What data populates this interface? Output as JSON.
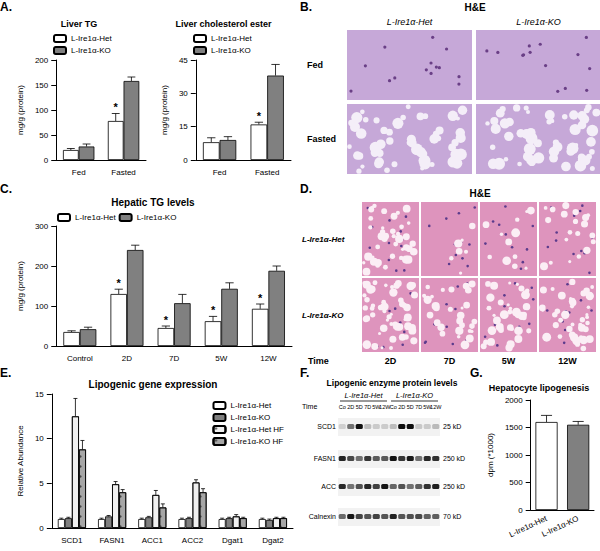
{
  "chart_data": [
    {
      "type": "bar",
      "title": "Liver TG",
      "ylabel": "mg/g (protein)",
      "categories": [
        "Fed",
        "Fasted"
      ],
      "series": [
        {
          "name": "L-Ire1α-Het",
          "color": "#ffffff",
          "values": [
            20,
            78
          ],
          "errors": [
            3,
            15
          ]
        },
        {
          "name": "L-Ire1α-KO",
          "color": "#808080",
          "values": [
            27,
            158
          ],
          "errors": [
            5,
            8
          ]
        }
      ],
      "annotations": [
        {
          "series": "L-Ire1α-Het",
          "category": "Fasted",
          "text": "*"
        }
      ],
      "ylim": [
        0,
        200
      ],
      "yticks": [
        0,
        50,
        100,
        150,
        200
      ],
      "grid": false,
      "legend": "top-left"
    },
    {
      "type": "bar",
      "title": "Liver cholesterol ester",
      "ylabel": "mg/g (protein)",
      "categories": [
        "Fed",
        "Fasted"
      ],
      "series": [
        {
          "name": "L-Ire1α-Het",
          "color": "#ffffff",
          "values": [
            8,
            16
          ],
          "errors": [
            2,
            1
          ]
        },
        {
          "name": "L-Ire1α-KO",
          "color": "#808080",
          "values": [
            9,
            38
          ],
          "errors": [
            1.5,
            5
          ]
        }
      ],
      "annotations": [
        {
          "series": "L-Ire1α-Het",
          "category": "Fasted",
          "text": "*"
        }
      ],
      "ylim": [
        0,
        45
      ],
      "yticks": [
        0,
        15,
        30,
        45
      ],
      "grid": false,
      "legend": "top-left"
    },
    {
      "type": "bar",
      "title": "Hepatic TG levels",
      "ylabel": "mg/g (protein)",
      "categories": [
        "Control",
        "2D",
        "7D",
        "5W",
        "12W"
      ],
      "series": [
        {
          "name": "L-Ire1α-Het",
          "color": "#ffffff",
          "values": [
            35,
            130,
            45,
            62,
            93
          ],
          "errors": [
            3,
            12,
            5,
            12,
            12
          ]
        },
        {
          "name": "L-Ire1α-KO",
          "color": "#808080",
          "values": [
            42,
            240,
            107,
            143,
            188
          ],
          "errors": [
            5,
            12,
            22,
            15,
            12
          ]
        }
      ],
      "annotations": [
        {
          "series": "L-Ire1α-Het",
          "category": "2D",
          "text": "*"
        },
        {
          "series": "L-Ire1α-Het",
          "category": "7D",
          "text": "*"
        },
        {
          "series": "L-Ire1α-Het",
          "category": "5W",
          "text": "*"
        },
        {
          "series": "L-Ire1α-Het",
          "category": "12W",
          "text": "*"
        }
      ],
      "ylim": [
        0,
        300
      ],
      "yticks": [
        0,
        100,
        200,
        300
      ],
      "grid": false,
      "legend": "top-left"
    },
    {
      "type": "bar",
      "title": "Lipogenic gene expression",
      "ylabel": "Relative Abundance",
      "categories": [
        "SCD1",
        "FASN1",
        "ACC1",
        "ACC2",
        "Dgat1",
        "Dgat2"
      ],
      "series": [
        {
          "name": "L-Ire1α-Het",
          "color": "#ffffff",
          "values": [
            1,
            1,
            1,
            1,
            1,
            1
          ],
          "errors": [
            0.1,
            0.1,
            0.1,
            0.1,
            0.1,
            0.1
          ]
        },
        {
          "name": "L-Ire1α-KO",
          "color": "#808080",
          "values": [
            1.1,
            1.3,
            1.2,
            1.1,
            1.1,
            0.9
          ],
          "errors": [
            0.1,
            0.1,
            0.1,
            0.1,
            0.1,
            0.1
          ]
        },
        {
          "name": "L-Ire1α-Het HF",
          "color": "#f0f0f0",
          "marker": "dots",
          "values": [
            12.5,
            4.9,
            3.7,
            5.1,
            1.3,
            1.1
          ],
          "errors": [
            2,
            0.3,
            0.5,
            0.3,
            0.2,
            0.1
          ]
        },
        {
          "name": "L-Ire1α-KO HF",
          "color": "#a6a6a6",
          "marker": "dots",
          "values": [
            8.8,
            4.0,
            2.3,
            4.0,
            1.1,
            1.1
          ],
          "errors": [
            1,
            0.3,
            0.4,
            0.4,
            0.1,
            0.1
          ]
        }
      ],
      "ylim": [
        0,
        15
      ],
      "yticks": [
        0,
        5,
        10,
        15
      ],
      "grid": false,
      "legend": "top-right"
    },
    {
      "type": "bar",
      "title": "Hepatocyte lipogenesis",
      "ylabel": "dpm (*1000)",
      "categories": [
        "L-Ire1α-Het",
        "L-Ire1α-KO"
      ],
      "values": [
        1600,
        1550
      ],
      "errors": [
        120,
        60
      ],
      "colors": [
        "#ffffff",
        "#808080"
      ],
      "ylim": [
        0,
        2000
      ],
      "yticks": [
        0,
        500,
        1000,
        1500,
        2000
      ],
      "grid": false
    }
  ],
  "figure": {
    "panel_labels": [
      "A.",
      "B.",
      "C.",
      "D.",
      "E.",
      "F.",
      "G."
    ],
    "B": {
      "title": "H&E",
      "columns": [
        "L-Ire1α-Het",
        "L-Ire1α-KO"
      ],
      "rows": [
        "Fed",
        "Fasted"
      ]
    },
    "D": {
      "title": "H&E",
      "rows": [
        "L-Ire1α-Het",
        "L-Ire1α-KO"
      ],
      "columns": [
        "2D",
        "7D",
        "5W",
        "12W"
      ],
      "axis_label": "Time"
    },
    "F": {
      "title": "Lipogenic enzyme protein levels",
      "time_label": "Time",
      "groups": [
        "L-Ire1α-Het",
        "L-Ire1α-KO"
      ],
      "lanes": [
        "Co",
        "2D",
        "5D",
        "7D",
        "5W",
        "12W"
      ],
      "rows": [
        {
          "name": "SCD1",
          "size": "25 kD"
        },
        {
          "name": "FASN1",
          "size": "250 kD"
        },
        {
          "name": "ACC",
          "size": "250 kD"
        },
        {
          "name": "Calnexin",
          "size": "70 kD"
        }
      ]
    }
  }
}
